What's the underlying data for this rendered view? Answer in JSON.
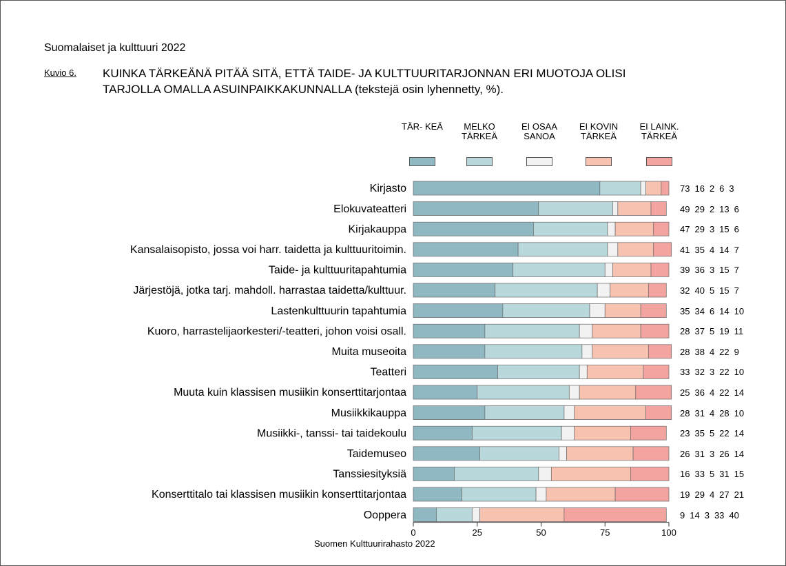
{
  "chart_data": {
    "type": "stacked-bar-horizontal",
    "heading": "Suomalaiset ja kulttuuri 2022",
    "figure_label": "Kuvio 6.",
    "title": "KUINKA TÄRKEÄNÄ PITÄÄ SITÄ, ETTÄ TAIDE- JA KULTTUURITARJONNAN ERI MUOTOJA OLISI\nTARJOLLA OMALLA ASUINPAIKKAKUNNALLA (tekstejä osin lyhennetty, %).",
    "source": "Suomen Kulttuurirahasto 2022",
    "categories": [
      "Kirjasto",
      "Elokuvateatteri",
      "Kirjakauppa",
      "Kansalaisopisto, jossa voi harr. taidetta ja kulttuuritoimin.",
      "Taide- ja kulttuuritapahtumia",
      "Järjestöjä, jotka tarj. mahdoll. harrastaa taidetta/kulttuur.",
      "Lastenkulttuurin tapahtumia",
      "Kuoro, harrastelijaorkesteri/-teatteri, johon voisi osall.",
      "Muita museoita",
      "Teatteri",
      "Muuta kuin klassisen musiikin konserttitarjontaa",
      "Musiikkikauppa",
      "Musiikki-, tanssi- tai taidekoulu",
      "Taidemuseo",
      "Tanssiesityksiä",
      "Konserttitalo tai klassisen musiikin konserttitarjontaa",
      "Ooppera"
    ],
    "series": [
      {
        "name": "TÄR-\nKEÄ",
        "color": "#8fb8c3",
        "values": [
          73,
          49,
          47,
          41,
          39,
          32,
          35,
          28,
          28,
          33,
          25,
          28,
          23,
          26,
          16,
          19,
          9
        ]
      },
      {
        "name": "MELKO\nTÄRKEÄ",
        "color": "#b9d8dc",
        "values": [
          16,
          29,
          29,
          35,
          36,
          40,
          34,
          37,
          38,
          32,
          36,
          31,
          35,
          31,
          33,
          29,
          14
        ]
      },
      {
        "name": "EI OSAA\nSANOA",
        "color": "#f2f2f2",
        "values": [
          2,
          2,
          3,
          4,
          3,
          5,
          6,
          5,
          4,
          3,
          4,
          4,
          5,
          3,
          5,
          4,
          3
        ]
      },
      {
        "name": "EI KOVIN\nTÄRKEÄ",
        "color": "#f7c2b0",
        "values": [
          6,
          13,
          15,
          14,
          15,
          15,
          14,
          19,
          22,
          22,
          22,
          28,
          22,
          26,
          31,
          27,
          33
        ]
      },
      {
        "name": "EI LAINK.\nTÄRKEÄ",
        "color": "#f4a4a0",
        "values": [
          3,
          6,
          6,
          7,
          7,
          7,
          10,
          11,
          9,
          10,
          14,
          10,
          14,
          14,
          15,
          21,
          40
        ]
      }
    ],
    "xlim": [
      0,
      100
    ],
    "xticks": [
      0,
      25,
      50,
      75,
      100
    ],
    "grid": false
  }
}
